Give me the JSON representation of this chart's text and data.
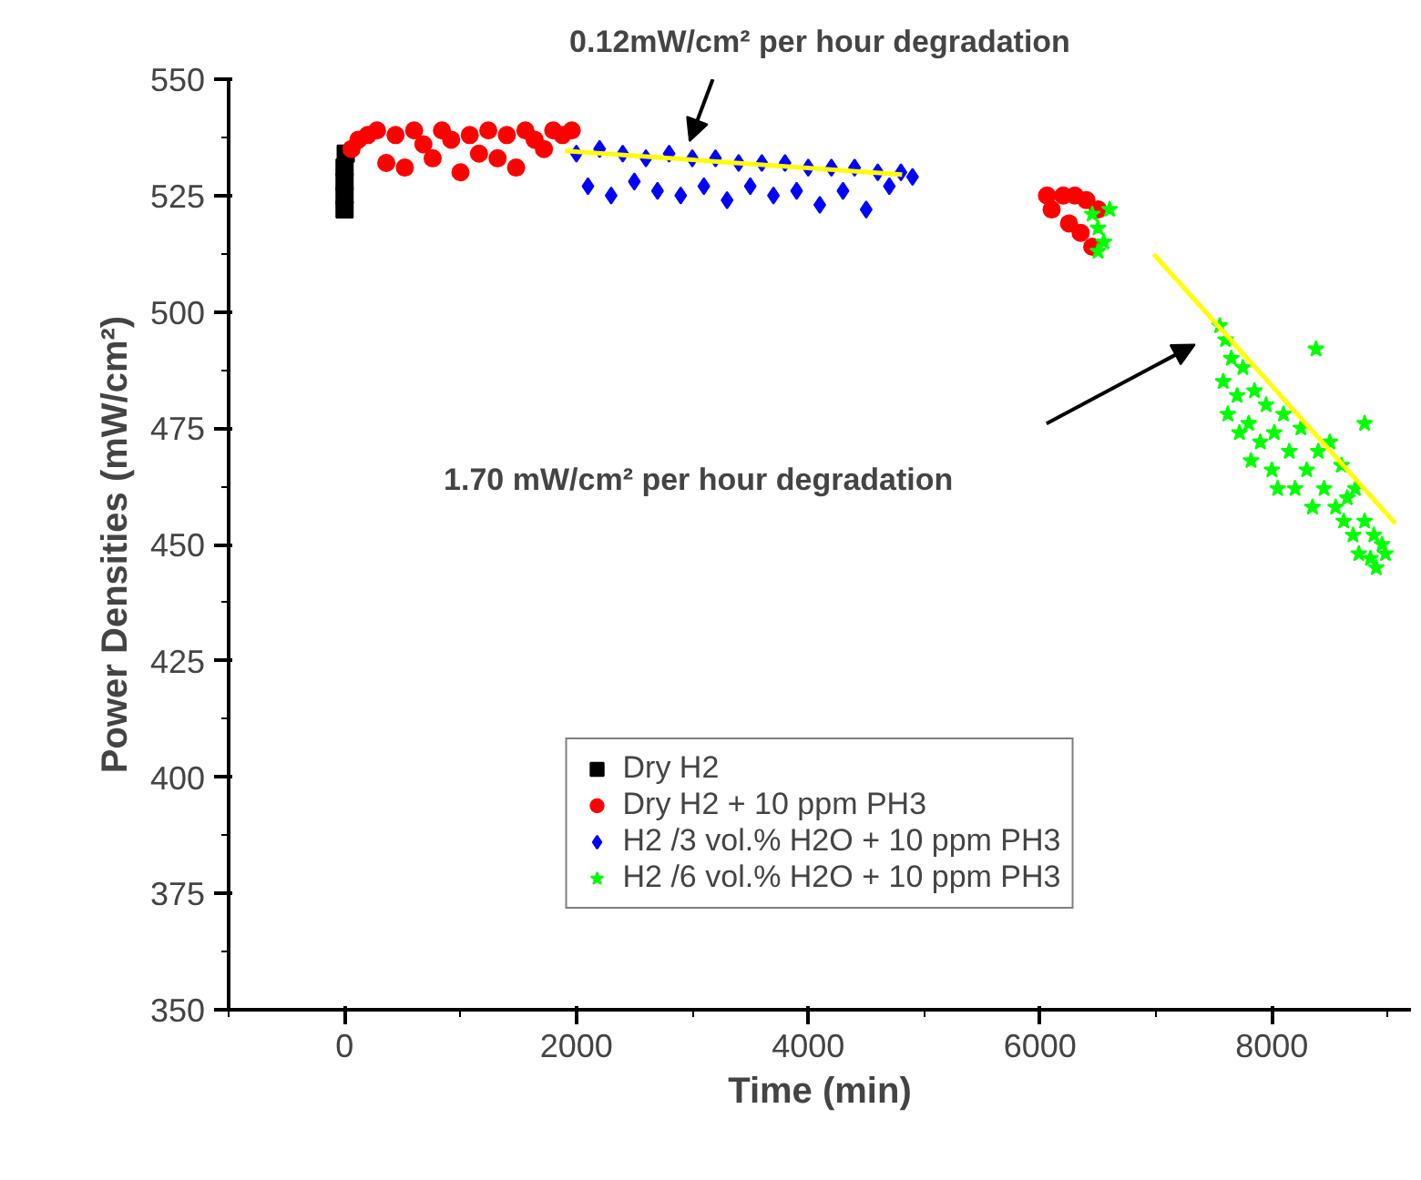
{
  "chart_data": {
    "type": "scatter",
    "xlabel": "Time (min)",
    "ylabel": "Power Densities (mW/cm²)",
    "xlim": [
      -1000,
      9200
    ],
    "ylim": [
      350,
      550
    ],
    "xticks": [
      0,
      2000,
      4000,
      6000,
      8000
    ],
    "yticks": [
      350,
      375,
      400,
      425,
      450,
      475,
      500,
      525,
      550
    ],
    "grid": false,
    "legend": "bottom",
    "annotations": [
      "0.12mW/cm² per hour degradation",
      "1.70 mW/cm² per hour degradation"
    ],
    "series": [
      {
        "name": "Dry H2",
        "color": "#000000",
        "marker": "square",
        "x": [
          0,
          0,
          0,
          0,
          10
        ],
        "values": [
          522,
          525,
          528,
          531,
          534
        ]
      },
      {
        "name": "Dry H2 + 10 ppm PH3",
        "color": "#ff0000",
        "marker": "circle",
        "x": [
          60,
          120,
          200,
          280,
          360,
          440,
          520,
          600,
          680,
          760,
          840,
          920,
          1000,
          1080,
          1160,
          1240,
          1320,
          1400,
          1480,
          1560,
          1640,
          1720,
          1800,
          1880,
          1960,
          6060,
          6100,
          6200,
          6250,
          6300,
          6350,
          6400,
          6450,
          6500
        ],
        "values": [
          535,
          537,
          538,
          539,
          532,
          538,
          531,
          539,
          536,
          533,
          539,
          537,
          530,
          538,
          534,
          539,
          533,
          538,
          531,
          539,
          537,
          535,
          539,
          538,
          539,
          525,
          522,
          525,
          519,
          525,
          517,
          524,
          514,
          522
        ]
      },
      {
        "name": "H2 /3 vol.% H2O + 10 ppm PH3",
        "color": "#0000ff",
        "marker": "diamond",
        "x": [
          2000,
          2100,
          2200,
          2300,
          2400,
          2500,
          2600,
          2700,
          2800,
          2900,
          3000,
          3100,
          3200,
          3300,
          3400,
          3500,
          3600,
          3700,
          3800,
          3900,
          4000,
          4100,
          4200,
          4300,
          4400,
          4500,
          4600,
          4700,
          4800,
          4900
        ],
        "values": [
          534,
          527,
          535,
          525,
          534,
          528,
          533,
          526,
          534,
          525,
          533,
          527,
          533,
          524,
          532,
          527,
          532,
          525,
          532,
          526,
          531,
          523,
          531,
          526,
          531,
          522,
          530,
          527,
          530,
          529
        ]
      },
      {
        "name": "H2 /6 vol.% H2O + 10 ppm PH3",
        "color": "#00ff00",
        "marker": "star",
        "x": [
          6450,
          6500,
          6550,
          6500,
          6600,
          7550,
          7580,
          7600,
          7620,
          7650,
          7700,
          7720,
          7750,
          7800,
          7820,
          7850,
          7900,
          7950,
          8000,
          8020,
          8050,
          8100,
          8150,
          8200,
          8250,
          8300,
          8350,
          8380,
          8400,
          8450,
          8500,
          8550,
          8600,
          8620,
          8650,
          8700,
          8720,
          8750,
          8800,
          8800,
          8850,
          8880,
          8900,
          8950,
          8980
        ],
        "values": [
          521,
          518,
          515,
          513,
          522,
          497,
          485,
          494,
          478,
          490,
          482,
          474,
          488,
          476,
          468,
          483,
          472,
          480,
          466,
          474,
          462,
          478,
          470,
          462,
          475,
          466,
          458,
          492,
          470,
          462,
          472,
          458,
          467,
          455,
          460,
          452,
          462,
          448,
          476,
          455,
          447,
          452,
          445,
          450,
          448
        ]
      },
      {
        "type": "line",
        "color": "#ffff00",
        "x": [
          1900,
          4810
        ],
        "values": [
          534.6,
          529.5
        ]
      },
      {
        "type": "line",
        "color": "#ffff00",
        "x": [
          6980,
          9065
        ],
        "values": [
          512.4,
          454.5
        ]
      }
    ]
  }
}
